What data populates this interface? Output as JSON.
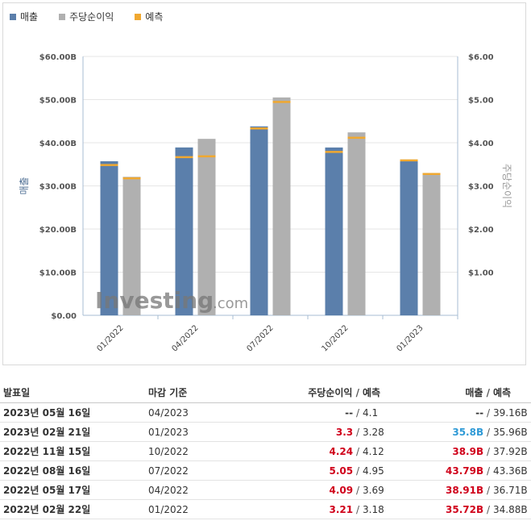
{
  "legend": [
    {
      "label": "매출",
      "color": "#5b7fab"
    },
    {
      "label": "주당순이익",
      "color": "#b0b0b0"
    },
    {
      "label": "예측",
      "color": "#f0a830"
    }
  ],
  "watermark": {
    "brand": "Investing",
    "suffix": ".com"
  },
  "chart_data": {
    "type": "bar",
    "categories": [
      "01/2022",
      "04/2022",
      "07/2022",
      "10/2022",
      "01/2023"
    ],
    "series": [
      {
        "name": "매출",
        "axis": "left",
        "color": "#5b7fab",
        "values": [
          35.72,
          38.91,
          43.79,
          38.9,
          35.8
        ]
      },
      {
        "name": "주당순이익",
        "axis": "right",
        "color": "#b0b0b0",
        "values": [
          3.21,
          4.09,
          5.05,
          4.24,
          3.3
        ]
      },
      {
        "name": "예측",
        "color": "#f0a830",
        "revenue_forecast": [
          34.88,
          36.71,
          43.36,
          37.92,
          35.96
        ],
        "eps_forecast": [
          3.18,
          3.69,
          4.95,
          4.12,
          3.28
        ]
      }
    ],
    "ylabel": "매출",
    "y2label": "주당순이익",
    "ylim": [
      0,
      60
    ],
    "y2lim": [
      0,
      6
    ],
    "yticks": [
      "$0.00",
      "$10.00B",
      "$20.00B",
      "$30.00B",
      "$40.00B",
      "$50.00B",
      "$60.00B"
    ],
    "y2ticks": [
      "",
      "$1.00",
      "$2.00",
      "$3.00",
      "$4.00",
      "$5.00",
      "$6.00"
    ],
    "grid": true
  },
  "table": {
    "headers": {
      "date": "발표일",
      "period": "마감 기준",
      "eps": "주당순이익",
      "eps_forecast": "예측",
      "revenue": "매출",
      "revenue_forecast": "예측",
      "slash": "/"
    },
    "rows": [
      {
        "date": "2023년 05월 16일",
        "period": "04/2023",
        "eps": "--",
        "eps_class": "flat",
        "eps_forecast": "4.1",
        "revenue": "--",
        "revenue_class": "flat",
        "revenue_forecast": "39.16B"
      },
      {
        "date": "2023년 02월 21일",
        "period": "01/2023",
        "eps": "3.3",
        "eps_class": "up",
        "eps_forecast": "3.28",
        "revenue": "35.8B",
        "revenue_class": "down",
        "revenue_forecast": "35.96B"
      },
      {
        "date": "2022년 11월 15일",
        "period": "10/2022",
        "eps": "4.24",
        "eps_class": "up",
        "eps_forecast": "4.12",
        "revenue": "38.9B",
        "revenue_class": "up",
        "revenue_forecast": "37.92B"
      },
      {
        "date": "2022년 08월 16일",
        "period": "07/2022",
        "eps": "5.05",
        "eps_class": "up",
        "eps_forecast": "4.95",
        "revenue": "43.79B",
        "revenue_class": "up",
        "revenue_forecast": "43.36B"
      },
      {
        "date": "2022년 05월 17일",
        "period": "04/2022",
        "eps": "4.09",
        "eps_class": "up",
        "eps_forecast": "3.69",
        "revenue": "38.91B",
        "revenue_class": "up",
        "revenue_forecast": "36.71B"
      },
      {
        "date": "2022년 02월 22일",
        "period": "01/2022",
        "eps": "3.21",
        "eps_class": "up",
        "eps_forecast": "3.18",
        "revenue": "35.72B",
        "revenue_class": "up",
        "revenue_forecast": "34.88B"
      }
    ]
  }
}
